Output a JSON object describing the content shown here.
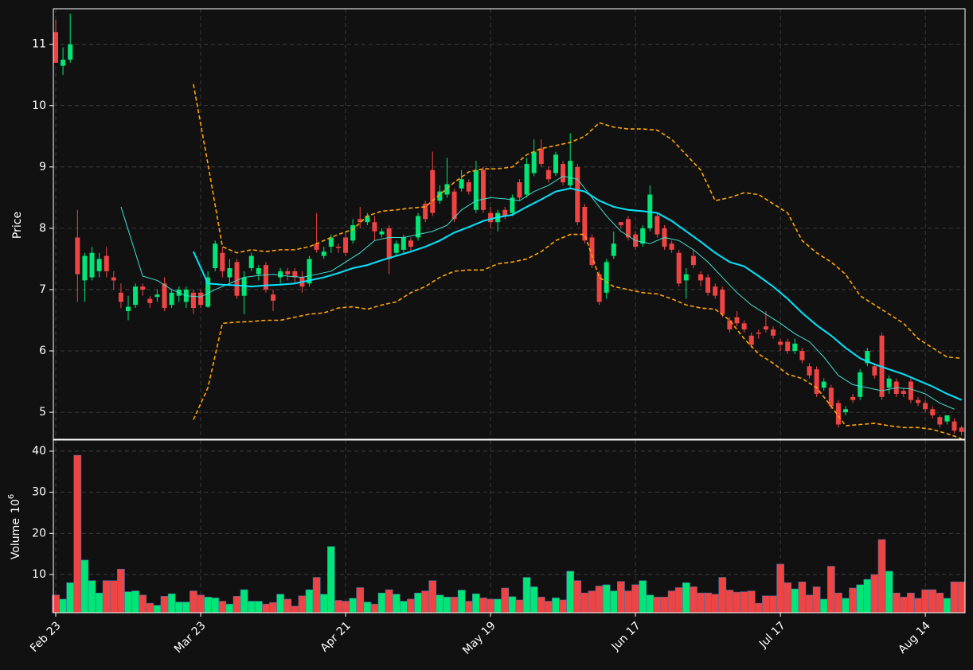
{
  "chart_data": [
    {
      "type": "candlestick",
      "ylabel": "Price",
      "open": [
        11.2,
        10.65,
        10.75,
        7.85,
        7.15,
        7.2,
        7.3,
        7.55,
        7.2,
        6.95,
        6.65,
        6.75,
        7.05,
        6.85,
        6.88,
        7.1,
        6.75,
        6.9,
        6.8,
        6.95,
        6.95,
        6.72,
        7.35,
        7.6,
        7.2,
        7.45,
        6.9,
        7.35,
        7.25,
        7.4,
        6.92,
        7.2,
        7.3,
        7.3,
        7.2,
        7.1,
        7.75,
        7.55,
        7.7,
        7.7,
        7.85,
        7.8,
        8.15,
        8.1,
        8.1,
        7.9,
        8.0,
        7.6,
        7.65,
        7.8,
        7.85,
        8.4,
        8.95,
        8.45,
        8.55,
        8.6,
        8.65,
        8.75,
        8.3,
        8.95,
        8.25,
        8.1,
        8.3,
        8.25,
        8.75,
        8.55,
        8.9,
        9.3,
        8.95,
        8.9,
        9.05,
        8.7,
        9.0,
        8.35,
        7.85,
        7.25,
        6.95,
        7.55,
        8.1,
        8.15,
        7.9,
        7.75,
        8.0,
        8.2,
        8.0,
        7.75,
        7.6,
        7.15,
        7.55,
        7.25,
        7.2,
        7.05,
        7.0,
        6.5,
        6.55,
        6.45,
        6.25,
        6.3,
        6.4,
        6.35,
        6.15,
        6.15,
        6.0,
        6.0,
        5.75,
        5.7,
        5.4,
        5.4,
        5.15,
        5.0,
        5.25,
        5.25,
        5.8,
        5.75,
        6.25,
        5.4,
        5.5,
        5.35,
        5.5,
        5.2,
        5.15,
        5.05,
        4.92,
        4.85,
        4.85,
        4.75
      ],
      "high": [
        11.4,
        10.95,
        11.5,
        8.3,
        7.6,
        7.7,
        7.6,
        7.7,
        7.3,
        7.1,
        6.9,
        7.1,
        7.1,
        6.9,
        7.0,
        7.2,
        7.0,
        7.05,
        7.05,
        7.0,
        7.0,
        7.3,
        7.8,
        7.7,
        7.5,
        7.5,
        7.3,
        7.6,
        7.4,
        7.45,
        7.0,
        7.35,
        7.35,
        7.35,
        7.3,
        7.55,
        8.25,
        7.7,
        7.9,
        7.75,
        7.95,
        8.15,
        8.35,
        8.25,
        8.2,
        8.0,
        8.05,
        7.8,
        7.9,
        7.85,
        8.25,
        8.45,
        9.25,
        8.7,
        9.15,
        8.65,
        8.95,
        8.8,
        9.1,
        9.0,
        8.35,
        8.3,
        8.35,
        8.55,
        8.8,
        9.15,
        9.45,
        9.45,
        9.0,
        9.25,
        9.1,
        9.55,
        9.05,
        8.4,
        7.9,
        7.3,
        7.5,
        7.95,
        8.1,
        8.2,
        7.95,
        8.05,
        8.7,
        8.25,
        8.05,
        7.8,
        7.65,
        7.35,
        7.65,
        7.3,
        7.25,
        7.1,
        7.05,
        6.55,
        6.65,
        6.5,
        6.3,
        6.35,
        6.65,
        6.4,
        6.2,
        6.2,
        6.2,
        6.05,
        5.8,
        5.75,
        5.55,
        5.45,
        5.2,
        5.1,
        5.3,
        5.7,
        6.05,
        5.8,
        6.3,
        5.6,
        5.55,
        5.4,
        5.55,
        5.25,
        5.2,
        5.1,
        4.95,
        4.95,
        4.9,
        4.78
      ],
      "low": [
        10.7,
        10.5,
        10.7,
        6.8,
        6.8,
        7.15,
        7.2,
        7.2,
        7.0,
        6.7,
        6.5,
        6.7,
        6.9,
        6.7,
        6.8,
        6.65,
        6.7,
        6.8,
        6.7,
        6.6,
        6.7,
        6.7,
        7.3,
        7.2,
        7.1,
        6.85,
        6.6,
        7.3,
        7.15,
        6.95,
        6.65,
        7.1,
        7.15,
        7.1,
        6.95,
        7.05,
        7.6,
        7.5,
        7.6,
        7.6,
        7.55,
        7.75,
        8.0,
        8.05,
        7.8,
        7.85,
        7.25,
        7.55,
        7.6,
        7.6,
        7.8,
        8.1,
        8.2,
        8.4,
        8.5,
        8.1,
        8.6,
        8.55,
        8.25,
        8.25,
        8.0,
        7.95,
        8.15,
        8.2,
        8.45,
        8.5,
        8.85,
        9.0,
        8.75,
        8.85,
        8.7,
        8.65,
        8.05,
        7.75,
        7.35,
        6.75,
        6.85,
        7.5,
        8.0,
        7.8,
        7.65,
        7.7,
        7.95,
        7.85,
        7.65,
        7.6,
        7.05,
        6.85,
        7.35,
        7.05,
        6.9,
        6.85,
        6.55,
        6.3,
        6.4,
        6.3,
        6.05,
        6.2,
        6.3,
        6.2,
        6.0,
        5.95,
        5.95,
        5.8,
        5.55,
        5.25,
        5.35,
        5.05,
        4.75,
        4.95,
        5.15,
        5.2,
        5.75,
        5.55,
        5.2,
        5.3,
        5.25,
        5.25,
        5.15,
        5.1,
        5.0,
        4.9,
        4.75,
        4.8,
        4.65,
        4.62
      ],
      "close": [
        10.7,
        10.75,
        11.0,
        7.25,
        7.55,
        7.6,
        7.5,
        7.3,
        7.15,
        6.8,
        6.72,
        7.05,
        7.0,
        6.78,
        6.92,
        6.7,
        6.95,
        7.0,
        7.0,
        6.7,
        6.75,
        7.2,
        7.75,
        7.3,
        7.35,
        6.9,
        7.2,
        7.55,
        7.35,
        7.0,
        6.82,
        7.3,
        7.25,
        7.2,
        7.05,
        7.5,
        7.65,
        7.62,
        7.85,
        7.68,
        7.6,
        8.05,
        8.1,
        8.2,
        7.95,
        7.95,
        7.5,
        7.75,
        7.85,
        7.7,
        8.2,
        8.15,
        8.25,
        8.6,
        8.72,
        8.15,
        8.8,
        8.6,
        8.95,
        8.3,
        8.1,
        8.25,
        8.2,
        8.5,
        8.5,
        9.05,
        9.25,
        9.05,
        8.8,
        9.2,
        8.75,
        9.1,
        8.1,
        7.8,
        7.4,
        6.8,
        7.45,
        7.75,
        8.05,
        7.85,
        7.7,
        8.0,
        8.55,
        7.9,
        7.7,
        7.65,
        7.1,
        7.25,
        7.4,
        7.15,
        6.95,
        6.9,
        6.6,
        6.35,
        6.45,
        6.35,
        6.1,
        6.28,
        6.35,
        6.25,
        6.1,
        6.0,
        6.12,
        5.85,
        5.6,
        5.3,
        5.5,
        5.1,
        4.8,
        5.05,
        5.2,
        5.65,
        6.0,
        5.6,
        5.25,
        5.55,
        5.3,
        5.3,
        5.2,
        5.15,
        5.05,
        4.95,
        4.8,
        4.95,
        4.7,
        4.68
      ],
      "up_color": "#00e676",
      "down_color": "#ef4444",
      "lines": [
        {
          "color": "#40e0d0",
          "width": 1,
          "dash": false,
          "x": [
            9,
            12,
            14,
            16,
            18,
            20,
            22,
            24,
            26,
            28,
            30,
            32,
            34,
            36,
            38,
            40,
            42,
            44,
            46,
            48,
            50,
            52,
            54,
            56,
            58,
            60,
            62,
            64,
            66,
            68,
            70,
            72,
            74,
            76,
            78,
            80,
            82,
            84,
            86,
            88,
            90,
            92,
            94,
            96,
            98,
            100,
            102,
            104,
            106,
            108,
            110,
            112,
            114,
            116,
            118,
            120,
            122,
            124
          ],
          "values": [
            8.35,
            7.22,
            7.15,
            7.0,
            6.9,
            6.88,
            7.0,
            7.1,
            7.2,
            7.23,
            7.25,
            7.22,
            7.2,
            7.25,
            7.3,
            7.45,
            7.6,
            7.8,
            7.85,
            7.85,
            7.9,
            7.95,
            8.05,
            8.3,
            8.45,
            8.5,
            8.48,
            8.45,
            8.6,
            8.7,
            8.85,
            8.8,
            8.5,
            8.2,
            7.95,
            7.8,
            7.75,
            7.85,
            7.8,
            7.65,
            7.45,
            7.2,
            6.95,
            6.75,
            6.6,
            6.45,
            6.28,
            6.15,
            5.9,
            5.6,
            5.45,
            5.4,
            5.35,
            5.4,
            5.38,
            5.3,
            5.15,
            5.05
          ]
        },
        {
          "color": "#00e5ff",
          "width": 2,
          "dash": false,
          "x": [
            19,
            21,
            23,
            25,
            27,
            29,
            31,
            33,
            35,
            37,
            39,
            41,
            43,
            45,
            47,
            49,
            51,
            53,
            55,
            57,
            59,
            61,
            63,
            65,
            67,
            69,
            71,
            73,
            75,
            77,
            79,
            81,
            83,
            85,
            87,
            89,
            91,
            93,
            95,
            97,
            99,
            101,
            103,
            105,
            107,
            109,
            111,
            113,
            115,
            117,
            119,
            121,
            123,
            125
          ],
          "values": [
            7.62,
            7.1,
            7.08,
            7.07,
            7.05,
            7.07,
            7.08,
            7.1,
            7.15,
            7.2,
            7.27,
            7.35,
            7.4,
            7.48,
            7.55,
            7.62,
            7.7,
            7.8,
            7.93,
            8.02,
            8.12,
            8.18,
            8.22,
            8.35,
            8.47,
            8.6,
            8.65,
            8.6,
            8.45,
            8.35,
            8.3,
            8.28,
            8.25,
            8.12,
            7.95,
            7.78,
            7.6,
            7.45,
            7.38,
            7.22,
            7.05,
            6.85,
            6.62,
            6.42,
            6.25,
            6.05,
            5.88,
            5.78,
            5.7,
            5.62,
            5.52,
            5.42,
            5.3,
            5.2
          ]
        },
        {
          "color": "#ffa500",
          "width": 1.6,
          "dash": true,
          "x": [
            19,
            21,
            23,
            25,
            27,
            29,
            31,
            33,
            35,
            37,
            39,
            41,
            43,
            45,
            47,
            49,
            51,
            53,
            55,
            57,
            59,
            61,
            63,
            65,
            67,
            69,
            71,
            73,
            75,
            77,
            79,
            81,
            83,
            85,
            87,
            89,
            91,
            93,
            95,
            97,
            99,
            101,
            103,
            105,
            107,
            109,
            111,
            113,
            115,
            117,
            119,
            121,
            123,
            125
          ],
          "values": [
            10.35,
            9.05,
            7.7,
            7.6,
            7.65,
            7.62,
            7.65,
            7.65,
            7.7,
            7.8,
            7.9,
            7.98,
            8.2,
            8.28,
            8.3,
            8.33,
            8.35,
            8.55,
            8.75,
            8.92,
            8.97,
            8.97,
            9.0,
            9.2,
            9.3,
            9.35,
            9.4,
            9.5,
            9.72,
            9.65,
            9.62,
            9.62,
            9.6,
            9.45,
            9.2,
            8.95,
            8.45,
            8.5,
            8.58,
            8.55,
            8.4,
            8.25,
            7.8,
            7.6,
            7.45,
            7.25,
            6.9,
            6.75,
            6.6,
            6.45,
            6.2,
            6.05,
            5.9,
            5.88
          ]
        },
        {
          "color": "#ffa500",
          "width": 1.6,
          "dash": true,
          "x": [
            19,
            21,
            23,
            25,
            27,
            29,
            31,
            33,
            35,
            37,
            39,
            41,
            43,
            45,
            47,
            49,
            51,
            53,
            55,
            57,
            59,
            61,
            63,
            65,
            67,
            69,
            71,
            73,
            75,
            77,
            79,
            81,
            83,
            85,
            87,
            89,
            91,
            93,
            95,
            97,
            99,
            101,
            103,
            105,
            107,
            109,
            111,
            113,
            115,
            117,
            119,
            121,
            123,
            125
          ],
          "values": [
            4.88,
            5.4,
            6.45,
            6.47,
            6.48,
            6.5,
            6.5,
            6.55,
            6.6,
            6.62,
            6.7,
            6.72,
            6.68,
            6.75,
            6.8,
            6.95,
            7.05,
            7.2,
            7.3,
            7.32,
            7.32,
            7.42,
            7.45,
            7.5,
            7.62,
            7.8,
            7.9,
            7.9,
            7.2,
            7.05,
            7.0,
            6.95,
            6.93,
            6.85,
            6.75,
            6.7,
            6.68,
            6.5,
            6.2,
            5.95,
            5.8,
            5.62,
            5.55,
            5.4,
            5.1,
            4.78,
            4.8,
            4.82,
            4.78,
            4.75,
            4.75,
            4.72,
            4.65,
            4.57
          ]
        }
      ],
      "xlim": [
        -0.33,
        125.48
      ],
      "ylim": [
        4.56,
        11.58
      ],
      "yticks": [
        5,
        6,
        7,
        8,
        9,
        10,
        11
      ],
      "grid": true
    },
    {
      "type": "bar",
      "ylabel": "Volume",
      "scale_label": "10",
      "scale_exponent": "6",
      "values": [
        5,
        4,
        8,
        39,
        13.5,
        8.5,
        5.5,
        8.5,
        8.5,
        11.3,
        5.8,
        6,
        5,
        3,
        2.5,
        4.7,
        5.3,
        3.3,
        3.3,
        6,
        5,
        4.5,
        4.3,
        3.5,
        2.8,
        4.7,
        6.3,
        3.5,
        3.5,
        2.8,
        3.2,
        5.2,
        4,
        2.3,
        4.8,
        6.3,
        9.3,
        5.2,
        16.8,
        3.7,
        3.5,
        4.2,
        6.8,
        3.3,
        2.8,
        5.5,
        6.3,
        5.2,
        3.5,
        4,
        5.5,
        6,
        8.5,
        5,
        4.5,
        4.5,
        6.2,
        3.5,
        5.3,
        4.3,
        4,
        4,
        6.7,
        4.6,
        3.8,
        9.3,
        7,
        4.5,
        3.5,
        4.3,
        3.8,
        10.8,
        8.5,
        5.5,
        6,
        7.2,
        7.5,
        6,
        8.3,
        6,
        7.5,
        8.5,
        5,
        4.5,
        4.5,
        6,
        6.8,
        8,
        7,
        5.5,
        5.5,
        5.2,
        9.3,
        6.2,
        5.7,
        5.8,
        6,
        3,
        4.8,
        4.8,
        12.5,
        8,
        6.5,
        8.2,
        5,
        7,
        4,
        12,
        5.5,
        4.2,
        6.7,
        7.5,
        8.8,
        10,
        18.5,
        10.8,
        5.5,
        4.5,
        5.5,
        4.2,
        6.3,
        6.3,
        5.5,
        4.2,
        8.2,
        8.2
      ],
      "xlim": [
        -0.33,
        125.48
      ],
      "ylim": [
        0.7,
        42.7
      ],
      "yticks": [
        10,
        20,
        30,
        40
      ],
      "grid": true,
      "xticks": [
        {
          "value": 0,
          "label": "Feb 23"
        },
        {
          "value": 20,
          "label": "Mar 23"
        },
        {
          "value": 40,
          "label": "Apr 21"
        },
        {
          "value": 60,
          "label": "May 19"
        },
        {
          "value": 80,
          "label": "Jun 17"
        },
        {
          "value": 100,
          "label": "Jul 17"
        },
        {
          "value": 120,
          "label": "Aug 14"
        }
      ]
    }
  ]
}
